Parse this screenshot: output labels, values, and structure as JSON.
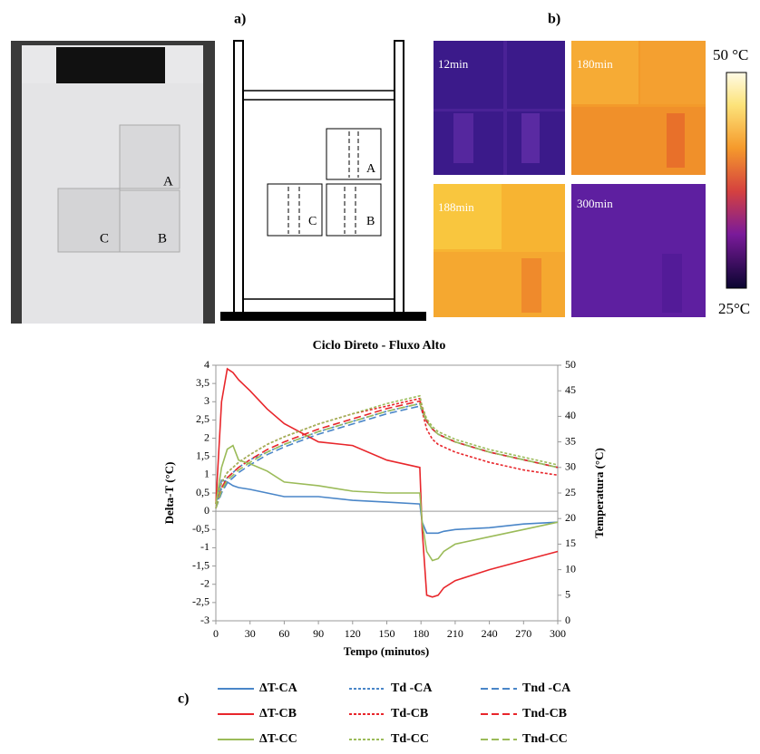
{
  "figure": {
    "label_a": "a)",
    "label_b": "b)",
    "label_c": "c)",
    "photo_labels": [
      "A",
      "B",
      "C"
    ],
    "diagram_labels": [
      "A",
      "B",
      "C"
    ],
    "thermal": [
      "12min",
      "180min",
      "188min",
      "300min"
    ],
    "colorbar": {
      "max": "50 °C",
      "min": "25°C"
    }
  },
  "chart_data": {
    "type": "line",
    "title": "Ciclo Direto - Fluxo Alto",
    "x_label": "Tempo (minutos)",
    "y_label": "Delta-T (°C)",
    "y2_label": "Temperatura (°C)",
    "x": [
      0,
      5,
      10,
      15,
      20,
      30,
      45,
      60,
      90,
      120,
      150,
      179,
      181,
      185,
      190,
      195,
      200,
      210,
      240,
      270,
      300
    ],
    "xlim": [
      0,
      300
    ],
    "xticks": [
      0,
      30,
      60,
      90,
      120,
      150,
      180,
      210,
      240,
      270,
      300
    ],
    "ylim": [
      -3,
      4
    ],
    "yticks": [
      -3,
      {
        "value": -2.5,
        "label": "-2,5"
      },
      -2,
      {
        "value": -1.5,
        "label": "-1,5"
      },
      -1,
      {
        "value": -0.5,
        "label": "-0,5"
      },
      0,
      {
        "value": 0.5,
        "label": "0,5"
      },
      1,
      {
        "value": 1.5,
        "label": "1,5"
      },
      2,
      {
        "value": 2.5,
        "label": "2,5"
      },
      3,
      {
        "value": 3.5,
        "label": "3,5"
      },
      4
    ],
    "y2lim": [
      0,
      50
    ],
    "y2ticks": [
      0,
      5,
      10,
      15,
      20,
      25,
      30,
      35,
      40,
      45,
      50
    ],
    "series": [
      {
        "name": "ΔT-CA",
        "color": "#4a86c8",
        "style": "solid",
        "values": [
          0.2,
          0.85,
          0.8,
          0.7,
          0.65,
          0.6,
          0.5,
          0.4,
          0.4,
          0.3,
          0.25,
          0.2,
          -0.3,
          -0.6,
          -0.6,
          -0.6,
          -0.55,
          -0.5,
          -0.45,
          -0.35,
          -0.3
        ]
      },
      {
        "name": "Td -CA",
        "color": "#4a86c8",
        "style": "dotted",
        "axis": "y2",
        "values": [
          22,
          26,
          28,
          29,
          30,
          31.5,
          33,
          34.5,
          37,
          39,
          41,
          42.5,
          41,
          39,
          37.5,
          36.5,
          36,
          35,
          33,
          31.5,
          30
        ]
      },
      {
        "name": "Tnd -CA",
        "color": "#4a86c8",
        "style": "dashed",
        "axis": "y2",
        "values": [
          22,
          25,
          27,
          28,
          29,
          30.5,
          32.5,
          34,
          36.5,
          38.5,
          40.5,
          42,
          41,
          39,
          37.5,
          36.5,
          36,
          35,
          33,
          31.5,
          30
        ]
      },
      {
        "name": "ΔT-CB",
        "color": "#e8262b",
        "style": "solid",
        "values": [
          0.2,
          3.0,
          3.9,
          3.8,
          3.6,
          3.3,
          2.8,
          2.4,
          1.9,
          1.8,
          1.4,
          1.2,
          -0.5,
          -2.3,
          -2.35,
          -2.3,
          -2.1,
          -1.9,
          -1.6,
          -1.35,
          -1.1
        ]
      },
      {
        "name": "Td-CB",
        "color": "#e8262b",
        "style": "dotted",
        "axis": "y2",
        "values": [
          23,
          27,
          29,
          30,
          31,
          32.5,
          34.5,
          36,
          38.5,
          40.5,
          42,
          43.5,
          41,
          37.5,
          35.5,
          34.5,
          34,
          33,
          31,
          29.5,
          28.5
        ]
      },
      {
        "name": "Tnd-CB",
        "color": "#e8262b",
        "style": "dashed",
        "axis": "y2",
        "values": [
          22,
          26,
          28,
          29,
          30,
          31.5,
          33.5,
          35,
          37.5,
          39.5,
          41.5,
          43,
          41.5,
          39,
          37.5,
          36.5,
          36,
          35,
          33,
          31.5,
          30
        ]
      },
      {
        "name": "ΔT-CC",
        "color": "#9bbb59",
        "style": "solid",
        "values": [
          0.2,
          1.2,
          1.7,
          1.8,
          1.4,
          1.3,
          1.1,
          0.8,
          0.7,
          0.55,
          0.5,
          0.5,
          -0.3,
          -1.1,
          -1.35,
          -1.3,
          -1.1,
          -0.9,
          -0.7,
          -0.5,
          -0.3
        ]
      },
      {
        "name": "Td-CC",
        "color": "#9bbb59",
        "style": "dotted",
        "axis": "y2",
        "values": [
          23,
          27,
          29,
          30,
          31,
          32.5,
          34.5,
          36,
          38.5,
          40.5,
          42.5,
          44,
          42,
          39.5,
          38,
          37,
          36.5,
          35.5,
          33.5,
          32,
          30.5
        ]
      },
      {
        "name": "Tnd-CC",
        "color": "#9bbb59",
        "style": "dashed",
        "axis": "y2",
        "values": [
          22,
          25.5,
          27.5,
          28.5,
          29.5,
          31,
          33,
          34.5,
          37,
          39,
          41,
          42.5,
          41,
          39,
          37.5,
          36.5,
          36,
          35,
          33,
          31.5,
          30
        ]
      }
    ]
  }
}
